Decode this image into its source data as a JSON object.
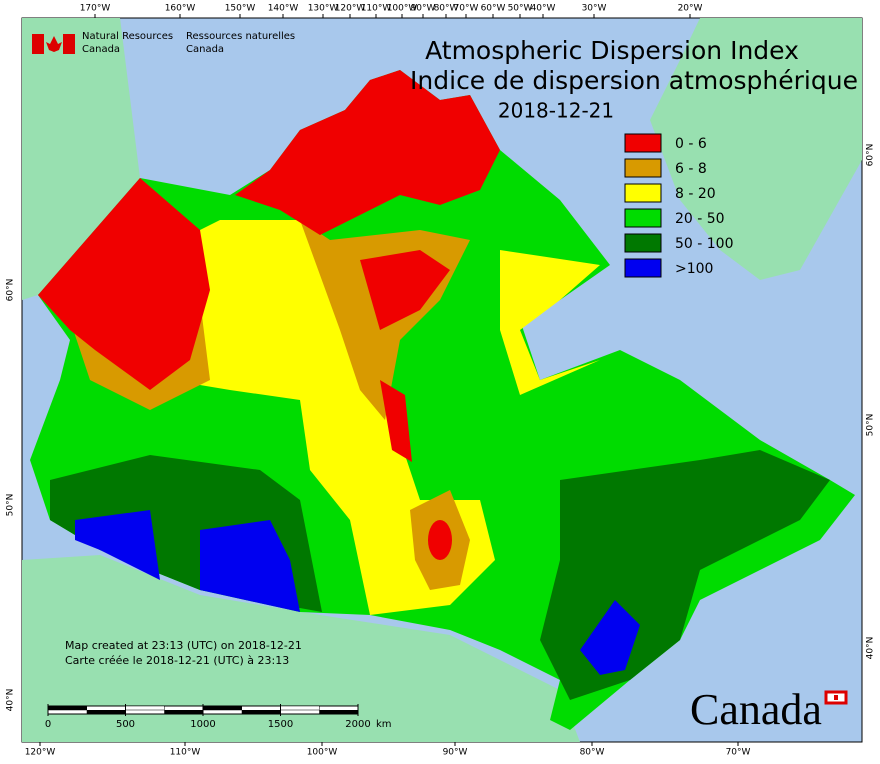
{
  "header": {
    "agency_en_1": "Natural Resources",
    "agency_en_2": "Canada",
    "agency_fr_1": "Ressources naturelles",
    "agency_fr_2": "Canada"
  },
  "title": {
    "line_en": "Atmospheric Dispersion Index",
    "line_fr": "Indice de dispersion atmosphérique",
    "date": "2018-12-21"
  },
  "legend": [
    {
      "label": "0 - 6",
      "color": "#f00000"
    },
    {
      "label": "6 - 8",
      "color": "#d89a00"
    },
    {
      "label": "8 - 20",
      "color": "#ffff00"
    },
    {
      "label": "20 - 50",
      "color": "#00dc00"
    },
    {
      "label": "50 - 100",
      "color": "#007800"
    },
    {
      "label": ">100",
      "color": "#0000f0"
    }
  ],
  "graticule": {
    "top": [
      "170°W",
      "160°W",
      "150°W",
      "140°W",
      "130°W",
      "120°W",
      "110°W",
      "100°W",
      "90°W",
      "80°W",
      "70°W",
      "60°W",
      "50°W",
      "40°W",
      "30°W",
      "20°W"
    ],
    "bottom": [
      "120°W",
      "110°W",
      "100°W",
      "90°W",
      "80°W",
      "70°W"
    ],
    "left": [
      "60°N",
      "50°N",
      "40°N"
    ],
    "right": [
      "60°N",
      "50°N",
      "40°N"
    ]
  },
  "credits": {
    "line_en": "Map created at 23:13 (UTC) on 2018-12-21",
    "line_fr": "Carte créée le 2018-12-21 (UTC) à 23:13"
  },
  "scale_bar": {
    "ticks": [
      0,
      500,
      1000,
      1500,
      2000
    ],
    "unit": "km"
  },
  "wordmark": "Canada"
}
